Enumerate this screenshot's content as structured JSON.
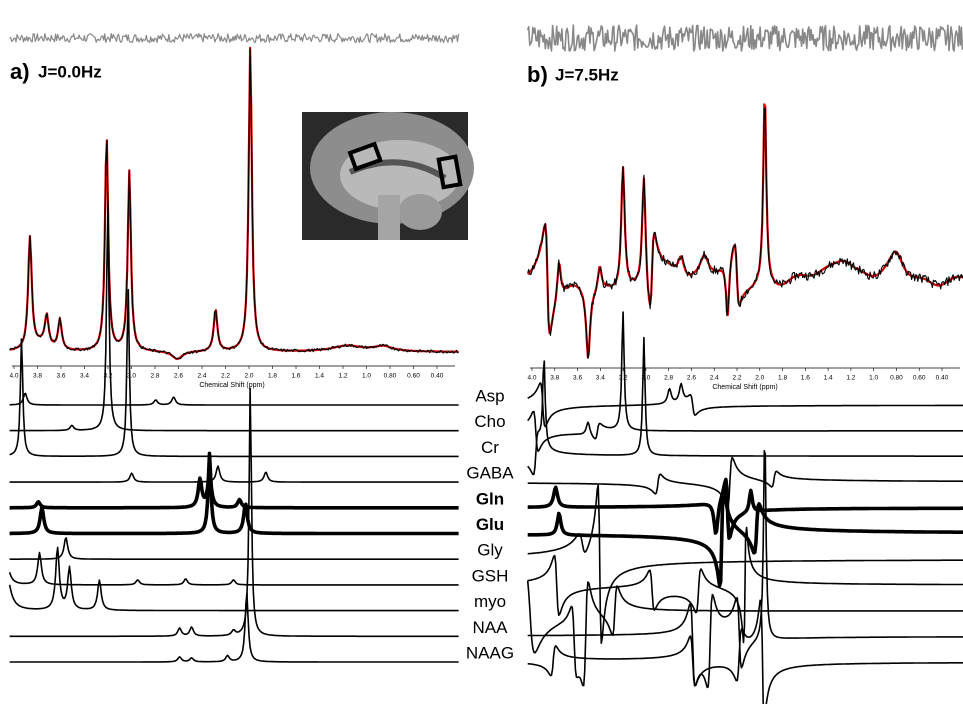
{
  "panels": [
    {
      "label": "a)",
      "title": "J=0.0Hz",
      "x_axis_label": "Chemical Shift (ppm)",
      "ticks": [
        "4.0",
        "3.8",
        "3.6",
        "3.4",
        "3.2",
        "3.0",
        "2.8",
        "2.6",
        "2.4",
        "2.2",
        "2.0",
        "1.8",
        "1.6",
        "1.4",
        "1.2",
        "1.0",
        "0.80",
        "0.60",
        "0.40"
      ]
    },
    {
      "label": "b)",
      "title": "J=7.5Hz",
      "x_axis_label": "Chemical Shift (ppm)",
      "ticks": [
        "4.0",
        "3.8",
        "3.6",
        "3.4",
        "3.2",
        "3.0",
        "2.8",
        "2.6",
        "2.4",
        "2.2",
        "2.0",
        "1.8",
        "1.6",
        "1.4",
        "1.2",
        "1.0",
        "0.80",
        "0.60",
        "0.40"
      ]
    }
  ],
  "metabolites": [
    "Asp",
    "Cho",
    "Cr",
    "GABA",
    "Gln",
    "Glu",
    "Gly",
    "GSH",
    "myo",
    "NAA",
    "NAAG"
  ]
}
